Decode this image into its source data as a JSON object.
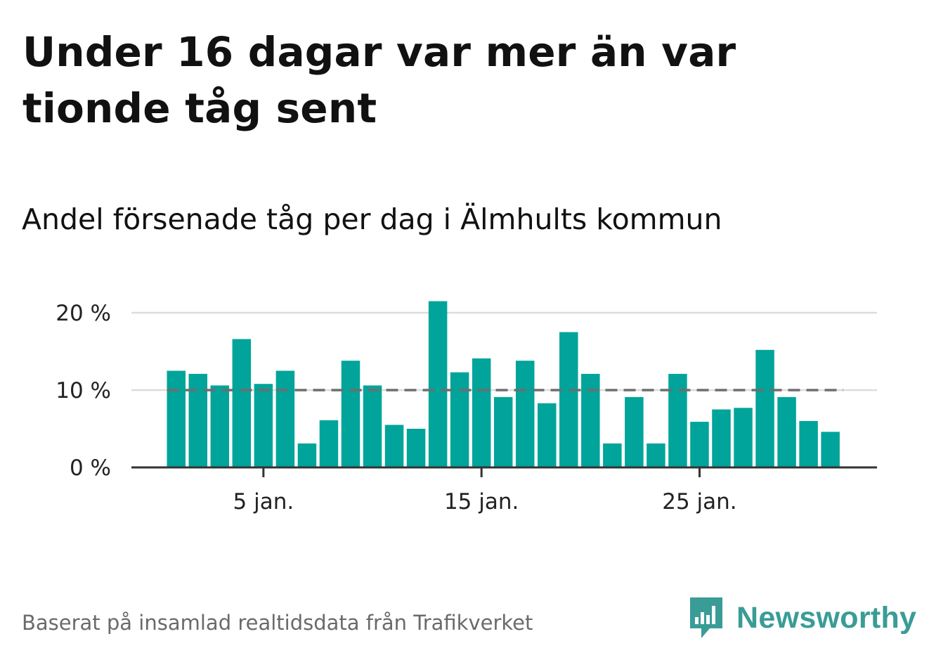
{
  "header": {
    "title": "Under 16 dagar var mer än var tionde tåg sent",
    "subtitle": "Andel försenade tåg per dag i Älmhults kommun"
  },
  "footer": {
    "source": "Baserat på insamlad realtidsdata från Trafikverket",
    "brand": "Newsworthy"
  },
  "colors": {
    "bar": "#00a49a",
    "reference_line": "#6e6e6e",
    "grid": "#dcdcdc",
    "axis": "#333333",
    "brand": "#3a9c96"
  },
  "chart_data": {
    "type": "bar",
    "x": [
      1,
      2,
      3,
      4,
      5,
      6,
      7,
      8,
      9,
      10,
      11,
      12,
      13,
      14,
      15,
      16,
      17,
      18,
      19,
      20,
      21,
      22,
      23,
      24,
      25,
      26,
      27,
      28,
      29,
      30,
      31
    ],
    "values": [
      12.5,
      12.1,
      10.6,
      16.6,
      10.8,
      12.5,
      3.1,
      6.1,
      13.8,
      10.6,
      5.5,
      5.0,
      21.5,
      12.3,
      14.1,
      9.1,
      13.8,
      8.3,
      17.5,
      12.1,
      3.1,
      9.1,
      3.1,
      12.1,
      5.9,
      7.5,
      7.7,
      15.2,
      9.1,
      6.0,
      4.6
    ],
    "unit": "%",
    "ylim": [
      0,
      22
    ],
    "yticks": [
      0,
      10,
      20
    ],
    "ytick_labels": [
      "0 %",
      "10 %",
      "20 %"
    ],
    "xticks": [
      5,
      15,
      25
    ],
    "xtick_labels": [
      "5 jan.",
      "15 jan.",
      "25 jan."
    ],
    "reference_line": 10,
    "grid": true,
    "legend": "none"
  }
}
